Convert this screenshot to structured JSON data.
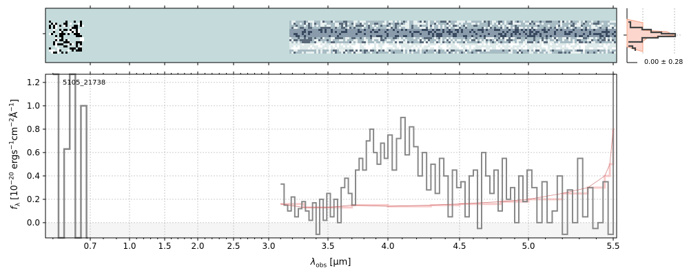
{
  "chart_data": {
    "type": "line",
    "object_label": "5105_21738",
    "xlabel": {
      "main": "λ",
      "sub": "obs",
      "unit": " [μm]"
    },
    "ylabel": {
      "main": "f",
      "sub": "λ",
      "p1": " [10",
      "e1": "−20",
      "p2": " ergs",
      "e2": "−1",
      "p3": "cm",
      "e3": "−2",
      "p4": "Å",
      "e4": "−1",
      "p5": "]"
    },
    "xticks": [
      0.7,
      1.0,
      1.5,
      2.0,
      2.5,
      3.0,
      3.5,
      4.0,
      4.5,
      5.0,
      5.5
    ],
    "xtick_labels": [
      "0.7",
      "1.0",
      "1.5",
      "2.0",
      "2.5",
      "3.0",
      "3.5",
      "4.0",
      "4.5",
      "5.0",
      "5.5"
    ],
    "yticks": [
      0.0,
      0.2,
      0.4,
      0.6,
      0.8,
      1.0,
      1.2
    ],
    "ytick_labels": [
      "0.0",
      "0.2",
      "0.4",
      "0.6",
      "0.8",
      "1.0",
      "1.2"
    ],
    "ylim": [
      -0.13,
      1.27
    ],
    "xlim": [
      0.6,
      5.52
    ],
    "grid": true,
    "series": [
      {
        "name": "spectrum-blue",
        "color": "#888888",
        "x": [
          0.6,
          0.615,
          0.63,
          0.645,
          0.66,
          0.675,
          0.69
        ],
        "y": [
          1.4,
          -0.2,
          0.63,
          1.4,
          -0.2,
          1.0,
          -0.2
        ]
      },
      {
        "name": "spectrum",
        "color": "#888888",
        "x": [
          3.1,
          3.13,
          3.16,
          3.19,
          3.22,
          3.25,
          3.28,
          3.31,
          3.34,
          3.37,
          3.4,
          3.43,
          3.46,
          3.49,
          3.52,
          3.55,
          3.58,
          3.61,
          3.64,
          3.67,
          3.7,
          3.73,
          3.76,
          3.79,
          3.82,
          3.85,
          3.88,
          3.91,
          3.94,
          3.97,
          4.0,
          4.03,
          4.06,
          4.09,
          4.12,
          4.15,
          4.18,
          4.21,
          4.24,
          4.27,
          4.3,
          4.33,
          4.36,
          4.39,
          4.42,
          4.45,
          4.48,
          4.51,
          4.54,
          4.57,
          4.6,
          4.63,
          4.66,
          4.69,
          4.72,
          4.75,
          4.78,
          4.81,
          4.84,
          4.87,
          4.9,
          4.93,
          4.96,
          4.99,
          5.02,
          5.05,
          5.08,
          5.11,
          5.14,
          5.17,
          5.2,
          5.23,
          5.26,
          5.29,
          5.32,
          5.35,
          5.38,
          5.41,
          5.44,
          5.47,
          5.5
        ],
        "y": [
          0.33,
          0.15,
          0.1,
          0.22,
          0.05,
          0.12,
          0.18,
          0.1,
          0.02,
          0.17,
          -0.1,
          0.2,
          0.02,
          0.25,
          0.05,
          0.2,
          0.0,
          0.3,
          0.38,
          0.25,
          0.15,
          0.45,
          0.55,
          0.45,
          0.7,
          0.8,
          0.6,
          0.5,
          0.68,
          0.55,
          0.75,
          0.45,
          0.72,
          0.9,
          0.58,
          0.82,
          0.65,
          0.4,
          0.6,
          0.28,
          0.5,
          0.25,
          0.55,
          0.4,
          0.05,
          0.45,
          0.3,
          0.35,
          0.05,
          0.4,
          0.45,
          -0.05,
          0.6,
          0.4,
          0.25,
          0.45,
          0.1,
          0.55,
          0.2,
          0.3,
          0.0,
          0.4,
          0.18,
          0.45,
          0.3,
          0.0,
          0.35,
          0.0,
          0.1,
          0.4,
          -0.1,
          0.28,
          0.0,
          0.55,
          0.05,
          0.3,
          -0.05,
          0.0,
          0.35,
          -0.1,
          1.3
        ]
      },
      {
        "name": "model",
        "color": "#f4a6a6",
        "x": [
          3.1,
          3.3,
          3.5,
          3.7,
          4.0,
          4.3,
          4.5,
          4.8,
          5.0,
          5.2,
          5.35,
          5.45,
          5.48,
          5.5
        ],
        "y": [
          0.16,
          0.13,
          0.13,
          0.15,
          0.14,
          0.15,
          0.16,
          0.18,
          0.2,
          0.25,
          0.3,
          0.4,
          0.5,
          0.8
        ]
      }
    ],
    "side_histogram": {
      "label": "0.00 ± 0.28"
    }
  }
}
